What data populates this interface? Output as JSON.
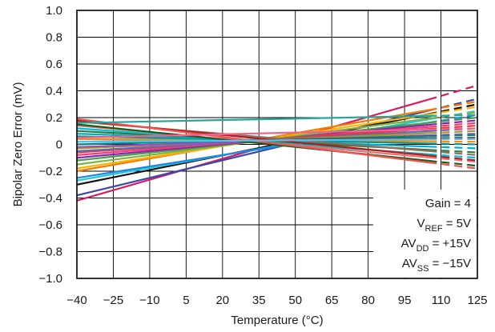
{
  "chart_data": {
    "type": "line",
    "title": "",
    "xlabel": "Temperature (°C)",
    "ylabel": "Bipolar Zero Error (mV)",
    "xlim": [
      -40,
      125
    ],
    "ylim": [
      -1.0,
      1.0
    ],
    "x_ticks": [
      "−40",
      "−25",
      "−10",
      "5",
      "20",
      "35",
      "50",
      "65",
      "80",
      "95",
      "110",
      "125"
    ],
    "x_tick_values": [
      -40,
      -25,
      -10,
      5,
      20,
      35,
      50,
      65,
      80,
      95,
      110,
      125
    ],
    "y_ticks": [
      "1.0",
      "0.8",
      "0.6",
      "0.4",
      "0.2",
      "0",
      "−0.2",
      "−0.4",
      "−0.6",
      "−0.8",
      "−1.0"
    ],
    "y_tick_values": [
      1.0,
      0.8,
      0.6,
      0.4,
      0.2,
      0,
      -0.2,
      -0.4,
      -0.6,
      -0.8,
      -1.0
    ],
    "grid": true,
    "solid_to": 105,
    "annotation": [
      {
        "main": "Gain = 4",
        "sub": "",
        "tail": ""
      },
      {
        "main": "V",
        "sub": "REF",
        "tail": " = 5V"
      },
      {
        "main": "AV",
        "sub": "DD",
        "tail": " = +15V"
      },
      {
        "main": "AV",
        "sub": "SS",
        "tail": " = −15V"
      }
    ],
    "series": [
      {
        "color": "#d81b60",
        "x": [
          -40,
          125
        ],
        "y": [
          -0.42,
          0.44
        ]
      },
      {
        "color": "#3949ab",
        "x": [
          -40,
          125
        ],
        "y": [
          -0.38,
          0.34
        ]
      },
      {
        "color": "#111111",
        "x": [
          -40,
          125
        ],
        "y": [
          -0.3,
          0.3
        ]
      },
      {
        "color": "#f57c00",
        "x": [
          -40,
          125
        ],
        "y": [
          -0.2,
          0.32
        ]
      },
      {
        "color": "#ffb300",
        "x": [
          -40,
          125
        ],
        "y": [
          -0.18,
          0.28
        ]
      },
      {
        "color": "#26c6da",
        "x": [
          -40,
          125
        ],
        "y": [
          -0.27,
          0.25
        ]
      },
      {
        "color": "#1e88e5",
        "x": [
          -40,
          125
        ],
        "y": [
          -0.25,
          0.22
        ]
      },
      {
        "color": "#7cb342",
        "x": [
          -40,
          125
        ],
        "y": [
          -0.15,
          0.24
        ]
      },
      {
        "color": "#43a047",
        "x": [
          -40,
          125
        ],
        "y": [
          -0.12,
          0.2
        ]
      },
      {
        "color": "#8e24aa",
        "x": [
          -40,
          125
        ],
        "y": [
          -0.1,
          0.18
        ]
      },
      {
        "color": "#ec407a",
        "x": [
          -40,
          125
        ],
        "y": [
          -0.08,
          0.16
        ]
      },
      {
        "color": "#e53935",
        "x": [
          -40,
          125
        ],
        "y": [
          -0.06,
          0.14
        ]
      },
      {
        "color": "#5c6bc0",
        "x": [
          -40,
          125
        ],
        "y": [
          -0.05,
          0.12
        ]
      },
      {
        "color": "#9e9d24",
        "x": [
          -40,
          125
        ],
        "y": [
          -0.03,
          0.1
        ]
      },
      {
        "color": "#ab47bc",
        "x": [
          -40,
          125
        ],
        "y": [
          -0.02,
          0.08
        ]
      },
      {
        "color": "#00897b",
        "x": [
          -40,
          125
        ],
        "y": [
          0.0,
          0.07
        ]
      },
      {
        "color": "#6d4c41",
        "x": [
          -40,
          125
        ],
        "y": [
          0.02,
          0.05
        ]
      },
      {
        "color": "#fb8c00",
        "x": [
          -40,
          125
        ],
        "y": [
          0.04,
          0.02
        ]
      },
      {
        "color": "#0097a7",
        "x": [
          -40,
          125
        ],
        "y": [
          0.06,
          0.0
        ]
      },
      {
        "color": "#00acc1",
        "x": [
          -40,
          125
        ],
        "y": [
          0.08,
          -0.03
        ]
      },
      {
        "color": "#2e7d32",
        "x": [
          -40,
          125
        ],
        "y": [
          0.1,
          -0.06
        ]
      },
      {
        "color": "#00bcd4",
        "x": [
          -40,
          125
        ],
        "y": [
          0.12,
          -0.1
        ]
      },
      {
        "color": "#e57373",
        "x": [
          -40,
          125
        ],
        "y": [
          0.14,
          -0.13
        ]
      },
      {
        "color": "#1b5e20",
        "x": [
          -40,
          125
        ],
        "y": [
          0.15,
          -0.16
        ]
      },
      {
        "color": "#8d6e63",
        "x": [
          -40,
          125
        ],
        "y": [
          0.17,
          -0.08
        ]
      },
      {
        "color": "#b71c1c",
        "x": [
          -40,
          125
        ],
        "y": [
          0.18,
          -0.12
        ]
      },
      {
        "color": "#ef5350",
        "x": [
          -40,
          125
        ],
        "y": [
          0.19,
          -0.18
        ]
      },
      {
        "color": "#26a69a",
        "x": [
          -40,
          125
        ],
        "y": [
          0.16,
          0.22
        ]
      },
      {
        "color": "#f06292",
        "x": [
          -40,
          125
        ],
        "y": [
          0.05,
          0.12
        ]
      },
      {
        "color": "#4fc3f7",
        "x": [
          -40,
          125
        ],
        "y": [
          0.02,
          0.04
        ]
      }
    ]
  }
}
